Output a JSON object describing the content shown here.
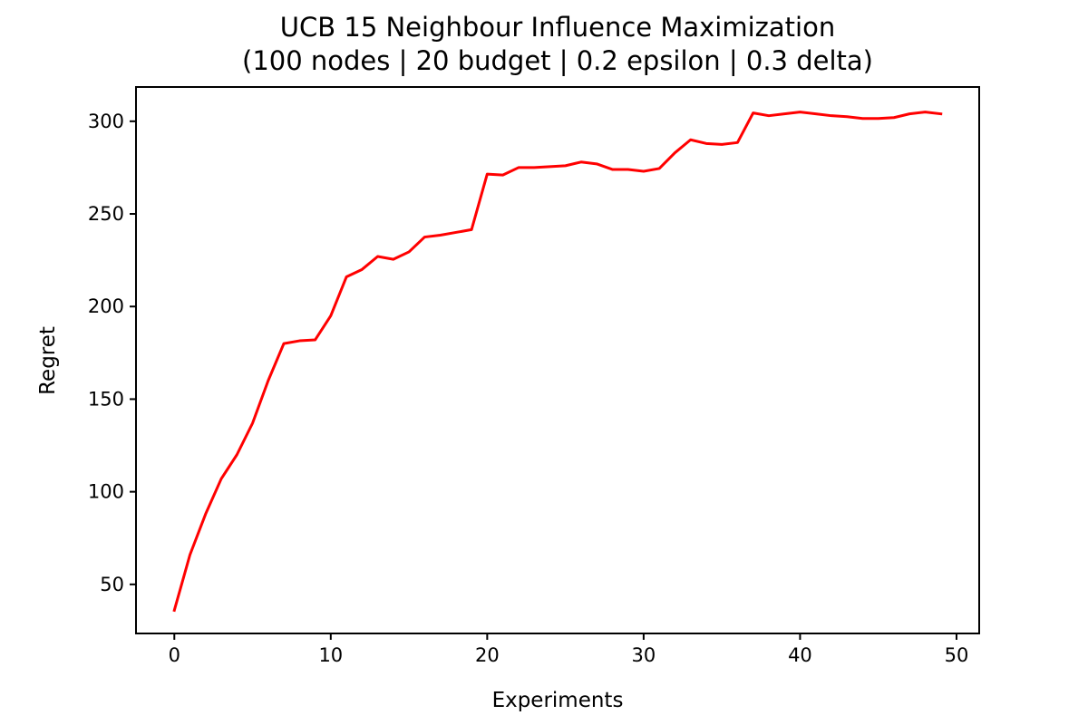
{
  "chart_data": {
    "type": "line",
    "title_line1": "UCB 15 Neighbour Influence Maximization",
    "title_line2": "(100 nodes | 20 budget | 0.2 epsilon | 0.3 delta)",
    "xlabel": "Experiments",
    "ylabel": "Regret",
    "xlim": [
      -2.45,
      51.45
    ],
    "ylim": [
      23.5,
      318.5
    ],
    "x_ticks": [
      0,
      10,
      20,
      30,
      40,
      50
    ],
    "y_ticks": [
      50,
      100,
      150,
      200,
      250,
      300
    ],
    "grid": false,
    "line_color": "#ff0000",
    "series": [
      {
        "x": [
          0,
          1,
          2,
          3,
          4,
          5,
          6,
          7,
          8,
          9,
          10,
          11,
          12,
          13,
          14,
          15,
          16,
          17,
          18,
          19,
          20,
          21,
          22,
          23,
          24,
          25,
          26,
          27,
          28,
          29,
          30,
          31,
          32,
          33,
          34,
          35,
          36,
          37,
          38,
          39,
          40,
          41,
          42,
          43,
          44,
          45,
          46,
          47,
          48,
          49
        ],
        "values": [
          36,
          66,
          88,
          107,
          120,
          137,
          160,
          180,
          181.5,
          182,
          195,
          216,
          220,
          227,
          225.5,
          229.5,
          237.5,
          238.5,
          240,
          241.5,
          271.5,
          271,
          275,
          275,
          275.5,
          276,
          278,
          277,
          274,
          274,
          273,
          274.5,
          283,
          290,
          288,
          287.5,
          288.5,
          304.5,
          303,
          304,
          305,
          304,
          303,
          302.5,
          301.5,
          301.5,
          302,
          304,
          305,
          304
        ]
      }
    ]
  }
}
